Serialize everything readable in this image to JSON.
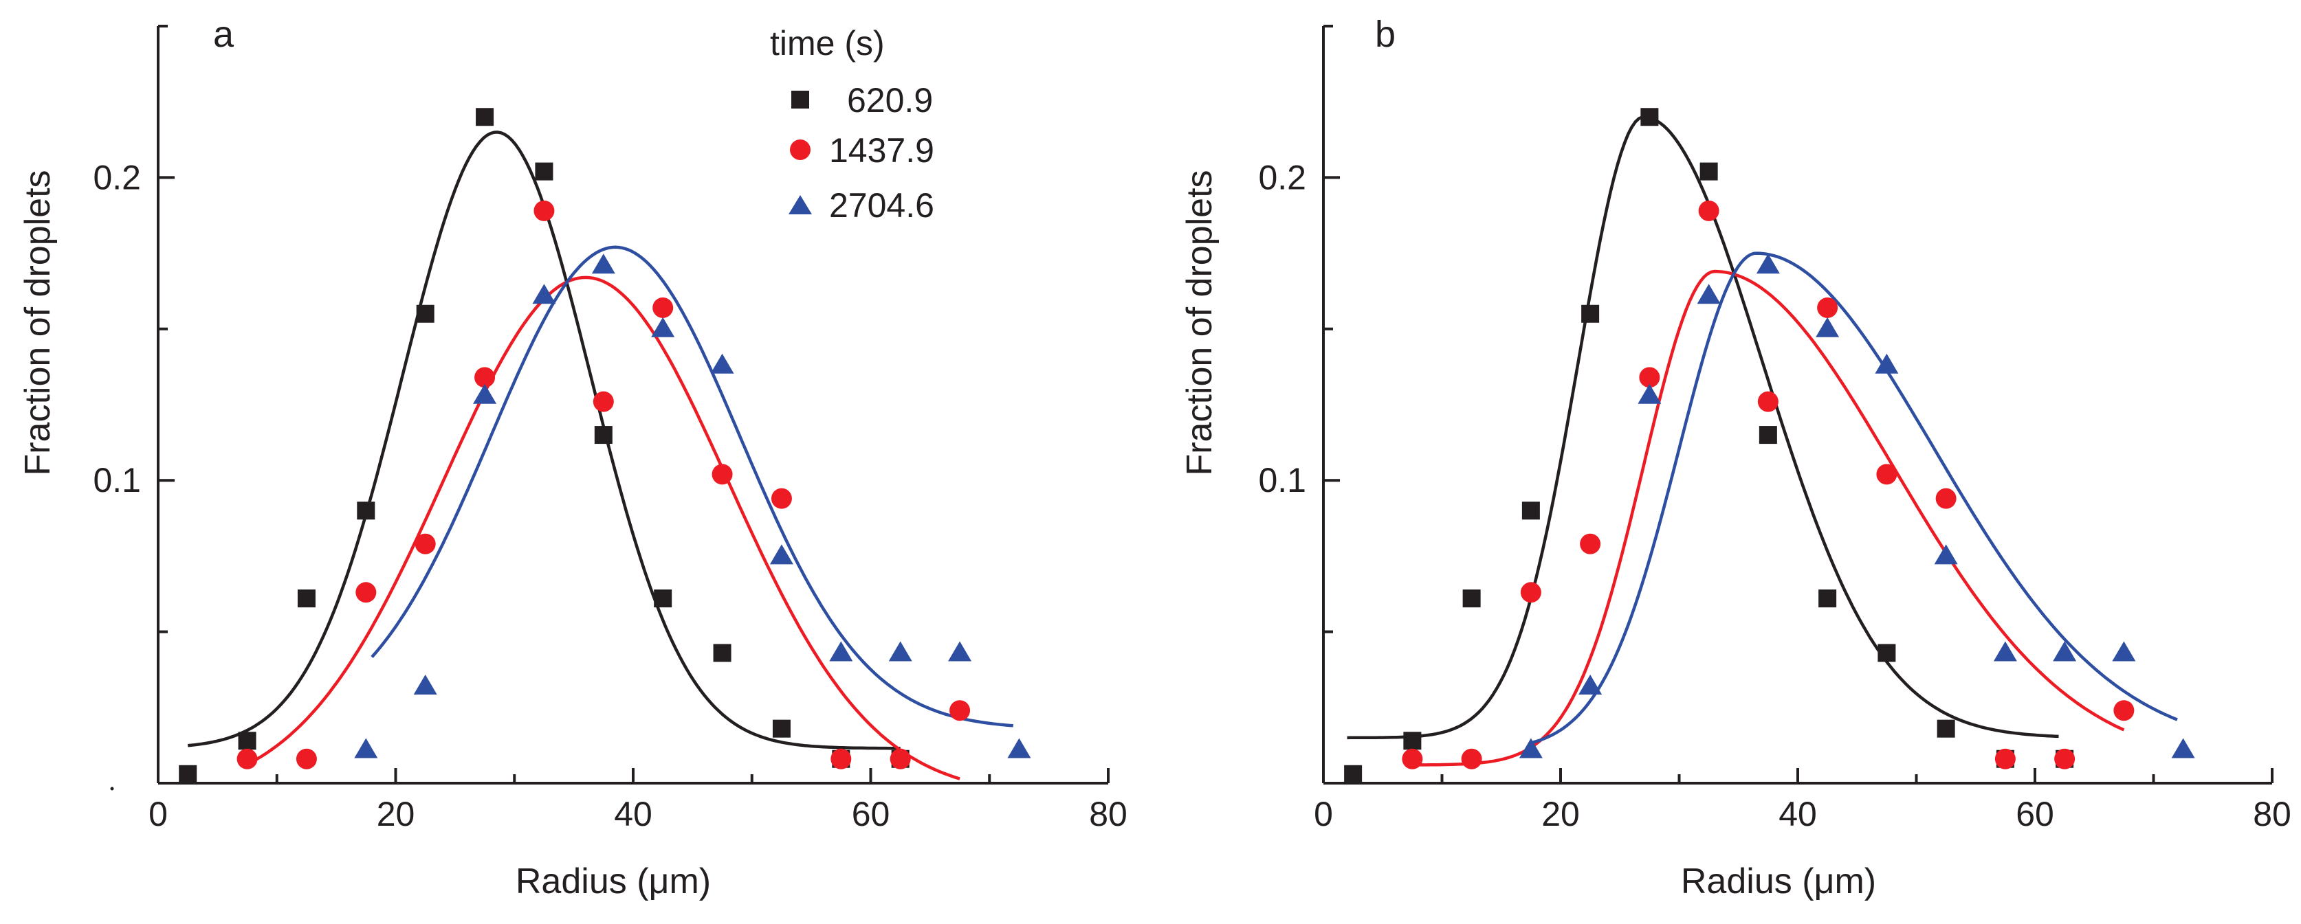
{
  "chart_data": [
    {
      "panel": "a",
      "type": "scatter",
      "xlabel": "Radius (μm)",
      "ylabel": "Fraction of droplets",
      "xlim": [
        0,
        80
      ],
      "ylim": [
        0,
        0.25
      ],
      "xticks": [
        0,
        20,
        40,
        60,
        80
      ],
      "yticks_labeled": [
        0.1,
        0.2
      ],
      "legend_title": "time (s)",
      "series": [
        {
          "name": "620.9",
          "marker": "square",
          "color": "#231f20",
          "x": [
            2.5,
            7.5,
            12.5,
            17.5,
            22.5,
            27.5,
            32.5,
            37.5,
            42.5,
            47.5,
            52.5,
            57.5,
            62.5
          ],
          "y": [
            0.003,
            0.014,
            0.061,
            0.09,
            0.155,
            0.22,
            0.202,
            0.115,
            0.061,
            0.043,
            0.018,
            0.008,
            0.008
          ],
          "fit": {
            "x_start": 2.5,
            "x_end": 62.5,
            "y0": 0.0115,
            "A": 0.2035,
            "xc": 28.5,
            "w": 7.9
          }
        },
        {
          "name": "1437.9",
          "marker": "circle",
          "color": "#ed1c24",
          "x": [
            7.5,
            12.5,
            17.5,
            22.5,
            27.5,
            32.5,
            37.5,
            42.5,
            47.5,
            52.5,
            57.5,
            62.5,
            67.5
          ],
          "y": [
            0.008,
            0.008,
            0.063,
            0.079,
            0.134,
            0.189,
            0.126,
            0.157,
            0.102,
            0.094,
            0.008,
            0.008,
            0.024
          ],
          "fit": {
            "x_start": 7.5,
            "x_end": 67.5,
            "y0": -0.004,
            "A": 0.171,
            "xc": 36,
            "w": 12
          }
        },
        {
          "name": "2704.6",
          "marker": "triangle",
          "color": "#2e4fa1",
          "x": [
            17.5,
            22.5,
            27.5,
            32.5,
            37.5,
            42.5,
            47.5,
            52.5,
            57.5,
            62.5,
            67.5,
            72.5
          ],
          "y": [
            0.011,
            0.032,
            0.128,
            0.161,
            0.171,
            0.15,
            0.138,
            0.075,
            0.043,
            0.043,
            0.043,
            0.011
          ],
          "fit": {
            "x_start": 18,
            "x_end": 72,
            "y0": 0.018,
            "A": 0.159,
            "xc": 38.5,
            "w": 10.5
          }
        }
      ]
    },
    {
      "panel": "b",
      "type": "scatter",
      "xlabel": "Radius (μm)",
      "ylabel": "Fraction of droplets",
      "xlim": [
        0,
        80
      ],
      "ylim": [
        0,
        0.25
      ],
      "xticks": [
        0,
        20,
        40,
        60,
        80
      ],
      "yticks_labeled": [
        0.1,
        0.2
      ],
      "series": [
        {
          "name": "620.9",
          "marker": "square",
          "color": "#231f20",
          "x": [
            2.5,
            7.5,
            12.5,
            17.5,
            22.5,
            27.5,
            32.5,
            37.5,
            42.5,
            47.5,
            52.5,
            57.5,
            62.5
          ],
          "y": [
            0.003,
            0.014,
            0.061,
            0.09,
            0.155,
            0.22,
            0.202,
            0.115,
            0.061,
            0.043,
            0.018,
            0.008,
            0.008
          ],
          "fit": {
            "x_start": 2,
            "x_end": 62,
            "y0": 0.015,
            "A": 0.205,
            "xc": 27,
            "w_left": 5.5,
            "w_right": 10
          }
        },
        {
          "name": "1437.9",
          "marker": "circle",
          "color": "#ed1c24",
          "x": [
            7.5,
            12.5,
            17.5,
            22.5,
            27.5,
            32.5,
            37.5,
            42.5,
            47.5,
            52.5,
            57.5,
            62.5,
            67.5
          ],
          "y": [
            0.008,
            0.008,
            0.063,
            0.079,
            0.134,
            0.189,
            0.126,
            0.157,
            0.102,
            0.094,
            0.008,
            0.008,
            0.024
          ],
          "fit": {
            "x_start": 7.5,
            "x_end": 67.5,
            "y0": 0.006,
            "A": 0.163,
            "xc": 33,
            "w_left": 6,
            "w_right": 15
          }
        },
        {
          "name": "2704.6",
          "marker": "triangle",
          "color": "#2e4fa1",
          "x": [
            17.5,
            22.5,
            27.5,
            32.5,
            37.5,
            42.5,
            47.5,
            52.5,
            57.5,
            62.5,
            67.5,
            72.5
          ],
          "y": [
            0.011,
            0.032,
            0.128,
            0.161,
            0.171,
            0.15,
            0.138,
            0.075,
            0.043,
            0.043,
            0.043,
            0.011
          ],
          "fit": {
            "x_start": 17.5,
            "x_end": 72,
            "y0": 0.011,
            "A": 0.164,
            "xc": 36.5,
            "w_left": 6.5,
            "w_right": 15
          }
        }
      ]
    }
  ]
}
